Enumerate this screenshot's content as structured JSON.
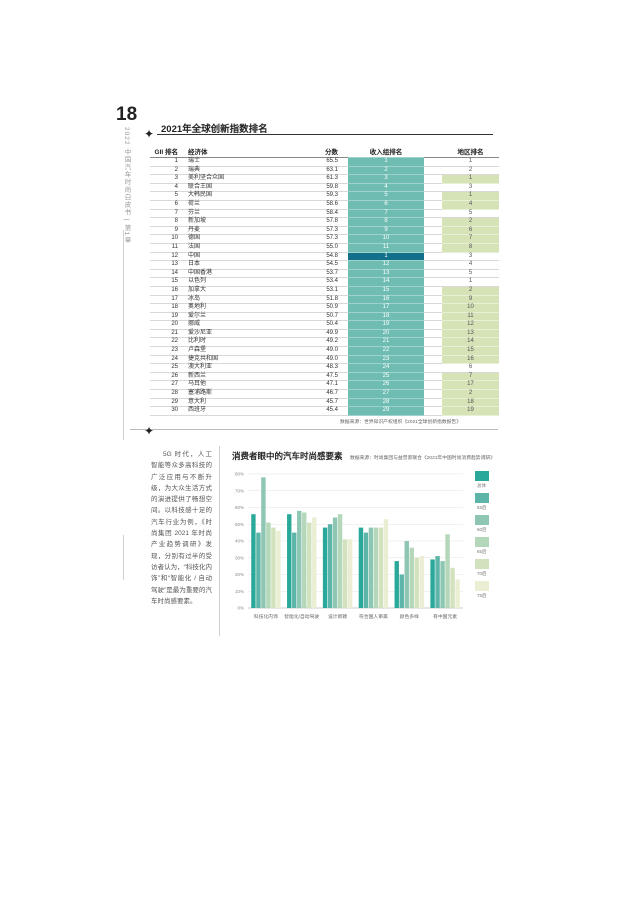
{
  "page": {
    "number": "18",
    "vertical_caption": "2022 中国汽车时尚白皮书 | 第1章"
  },
  "table": {
    "title": "2021年全球创新指数排名",
    "headers": {
      "rank": "GII 排名",
      "economy": "经济体",
      "score": "分数",
      "income": "收入组排名",
      "region": "地区排名"
    },
    "rows": [
      {
        "rank": "1",
        "economy": "瑞士",
        "score": "65.5",
        "income": "1",
        "region": "1"
      },
      {
        "rank": "2",
        "economy": "瑞典",
        "score": "63.1",
        "income": "2",
        "region": "2"
      },
      {
        "rank": "3",
        "economy": "美利坚合众国",
        "score": "61.3",
        "income": "3",
        "region": "1"
      },
      {
        "rank": "4",
        "economy": "联合王国",
        "score": "59.8",
        "income": "4",
        "region": "3"
      },
      {
        "rank": "5",
        "economy": "大韩民国",
        "score": "59.3",
        "income": "5",
        "region": "1"
      },
      {
        "rank": "6",
        "economy": "荷兰",
        "score": "58.6",
        "income": "6",
        "region": "4"
      },
      {
        "rank": "7",
        "economy": "芬兰",
        "score": "58.4",
        "income": "7",
        "region": "5"
      },
      {
        "rank": "8",
        "economy": "新加坡",
        "score": "57.8",
        "income": "8",
        "region": "2"
      },
      {
        "rank": "9",
        "economy": "丹麦",
        "score": "57.3",
        "income": "9",
        "region": "6"
      },
      {
        "rank": "10",
        "economy": "德国",
        "score": "57.3",
        "income": "10",
        "region": "7"
      },
      {
        "rank": "11",
        "economy": "法国",
        "score": "55.0",
        "income": "11",
        "region": "8"
      },
      {
        "rank": "12",
        "economy": "中国",
        "score": "54.8",
        "income": "1",
        "region": "3"
      },
      {
        "rank": "13",
        "economy": "日本",
        "score": "54.5",
        "income": "12",
        "region": "4"
      },
      {
        "rank": "14",
        "economy": "中国香港",
        "score": "53.7",
        "income": "13",
        "region": "5"
      },
      {
        "rank": "15",
        "economy": "以色列",
        "score": "53.4",
        "income": "14",
        "region": "1"
      },
      {
        "rank": "16",
        "economy": "加拿大",
        "score": "53.1",
        "income": "15",
        "region": "2"
      },
      {
        "rank": "17",
        "economy": "冰岛",
        "score": "51.8",
        "income": "16",
        "region": "9"
      },
      {
        "rank": "18",
        "economy": "奥地利",
        "score": "50.9",
        "income": "17",
        "region": "10"
      },
      {
        "rank": "19",
        "economy": "爱尔兰",
        "score": "50.7",
        "income": "18",
        "region": "11"
      },
      {
        "rank": "20",
        "economy": "挪威",
        "score": "50.4",
        "income": "19",
        "region": "12"
      },
      {
        "rank": "21",
        "economy": "爱沙尼亚",
        "score": "49.9",
        "income": "20",
        "region": "13"
      },
      {
        "rank": "22",
        "economy": "比利时",
        "score": "49.2",
        "income": "21",
        "region": "14"
      },
      {
        "rank": "23",
        "economy": "卢森堡",
        "score": "49.0",
        "income": "22",
        "region": "15"
      },
      {
        "rank": "24",
        "economy": "捷克共和国",
        "score": "49.0",
        "income": "23",
        "region": "16"
      },
      {
        "rank": "25",
        "economy": "澳大利亚",
        "score": "48.3",
        "income": "24",
        "region": "6"
      },
      {
        "rank": "26",
        "economy": "新西兰",
        "score": "47.5",
        "income": "25",
        "region": "7"
      },
      {
        "rank": "27",
        "economy": "马耳他",
        "score": "47.1",
        "income": "26",
        "region": "17"
      },
      {
        "rank": "28",
        "economy": "塞浦路斯",
        "score": "46.7",
        "income": "27",
        "region": "2"
      },
      {
        "rank": "29",
        "economy": "意大利",
        "score": "45.7",
        "income": "28",
        "region": "18"
      },
      {
        "rank": "30",
        "economy": "西班牙",
        "score": "45.4",
        "income": "29",
        "region": "19"
      }
    ],
    "source": "数据来源：世界知识产权组织《2021全球创新指数报告》"
  },
  "body_text": "5G 时代，人工智能等众多高科技的广泛应用与不断升级，为大众生活方式的演进提供了畅想空间。以科技感十足的汽车行业为例，《时尚集团 2021 年时尚产业趋势调研》发现，分别有过半的受访者认为，“科技化内饰”和“智能化 / 自动驾驶”是最为重要的汽车时尚感要素。",
  "colors": {
    "income_fill": "#6fbcb3",
    "income_highlight": "#13708a",
    "region_fill": "#d5e3b7"
  },
  "chart_data": {
    "type": "bar",
    "title": "消费者眼中的汽车时尚感要素",
    "source": "数据来源：时尚集团与益普索联合《2021年中国时尚消费趋势调研》",
    "categories": [
      "科技化内饰",
      "智能化/自动驾驶",
      "设计新颖",
      "符合国人审美",
      "颜色多样",
      "有中国元素"
    ],
    "ylim": [
      0,
      80
    ],
    "yticks": [
      "0%",
      "10%",
      "20%",
      "30%",
      "40%",
      "50%",
      "60%",
      "70%",
      "80%"
    ],
    "grid": true,
    "legend_position": "right",
    "series": [
      {
        "name": "总体",
        "color": "#2aa89a",
        "values": [
          56,
          56,
          48,
          48,
          28,
          29
        ]
      },
      {
        "name": "55后",
        "color": "#5cb5a8",
        "values": [
          45,
          45,
          50,
          45,
          20,
          31
        ]
      },
      {
        "name": "60后",
        "color": "#8dc6b2",
        "values": [
          78,
          58,
          54,
          48,
          40,
          28
        ]
      },
      {
        "name": "65后",
        "color": "#b4d7ba",
        "values": [
          51,
          57,
          56,
          48,
          36,
          44
        ]
      },
      {
        "name": "70后",
        "color": "#d2e2be",
        "values": [
          48,
          51,
          41,
          48,
          30,
          24
        ]
      },
      {
        "name": "75后",
        "color": "#ebeed3",
        "values": [
          46,
          54,
          41,
          53,
          31,
          17
        ]
      }
    ]
  }
}
